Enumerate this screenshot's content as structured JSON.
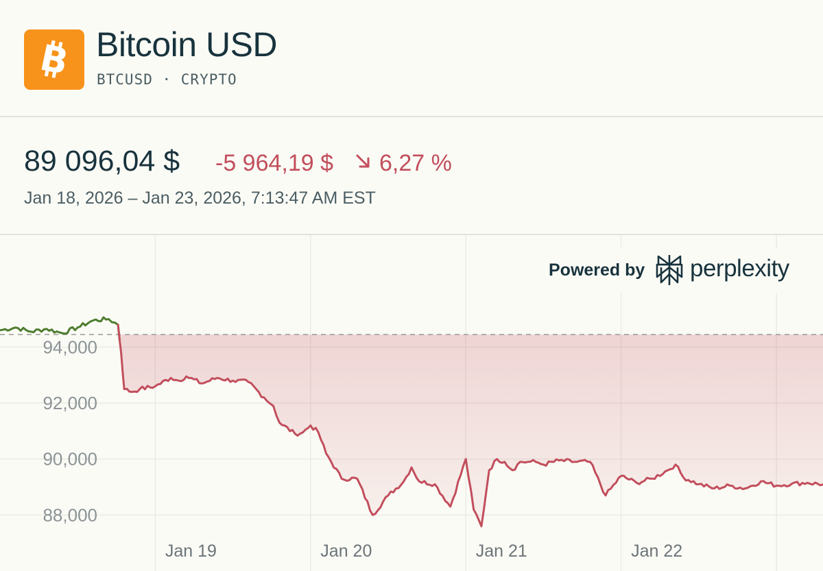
{
  "header": {
    "title": "Bitcoin USD",
    "subtitle": "BTCUSD · CRYPTO",
    "logo_icon": "bitcoin-icon",
    "logo_color": "#f7931a"
  },
  "quote": {
    "price": "89 096,04 $",
    "change": "-5 964,19 $",
    "change_icon": "arrow-down-right-icon",
    "change_pct": "6,27 %",
    "range": "Jan 18, 2026 – Jan 23, 2026, 7:13:47 AM EST",
    "negative_color": "#c24e5c",
    "positive_color": "#4e7d2f"
  },
  "branding": {
    "powered_by": "Powered by",
    "brand": "perplexity",
    "brand_icon": "perplexity-icon"
  },
  "chart_data": {
    "type": "line",
    "title": "Bitcoin USD",
    "xlabel": "",
    "ylabel": "",
    "x_ticks": [
      "Jan 19",
      "Jan 20",
      "Jan 21",
      "Jan 22"
    ],
    "x_tick_values": [
      1,
      2,
      3,
      4
    ],
    "y_ticks": [
      "88,000",
      "90,000",
      "92,000",
      "94,000"
    ],
    "y_tick_values": [
      88000,
      90000,
      92000,
      94000
    ],
    "xlim": [
      0,
      5.3
    ],
    "ylim": [
      86000,
      98000
    ],
    "baseline": 94450,
    "grid": true,
    "series": [
      {
        "name": "BTCUSD",
        "x": [
          0,
          0.1,
          0.2,
          0.3,
          0.4,
          0.5,
          0.6,
          0.7,
          0.76,
          0.78,
          0.8,
          0.85,
          0.9,
          1.0,
          1.1,
          1.15,
          1.2,
          1.3,
          1.4,
          1.5,
          1.6,
          1.7,
          1.76,
          1.8,
          1.9,
          1.95,
          2.0,
          2.05,
          2.1,
          2.2,
          2.3,
          2.4,
          2.5,
          2.6,
          2.65,
          2.7,
          2.8,
          2.9,
          3.0,
          3.05,
          3.1,
          3.15,
          3.2,
          3.25,
          3.3,
          3.35,
          3.4,
          3.45,
          3.5,
          3.6,
          3.7,
          3.8,
          3.9,
          4.0,
          4.1,
          4.2,
          4.3,
          4.35,
          4.4,
          4.5,
          4.6,
          4.7,
          4.8,
          4.9,
          5.0,
          5.1,
          5.2,
          5.3
        ],
        "values": [
          94600,
          94700,
          94550,
          94650,
          94500,
          94700,
          94950,
          95000,
          94800,
          93800,
          92500,
          92400,
          92500,
          92600,
          92900,
          92800,
          92950,
          92700,
          92900,
          92800,
          92750,
          92200,
          91900,
          91300,
          90900,
          90950,
          91200,
          90950,
          90200,
          89300,
          89300,
          88000,
          88700,
          89200,
          89700,
          89200,
          89100,
          88300,
          90000,
          88200,
          87600,
          89600,
          90000,
          89900,
          89600,
          89900,
          89900,
          89900,
          89800,
          89950,
          89900,
          89900,
          88700,
          89400,
          89150,
          89300,
          89600,
          89800,
          89350,
          89100,
          88950,
          89050,
          88950,
          89200,
          89050,
          89120,
          89150,
          89096
        ]
      }
    ]
  }
}
